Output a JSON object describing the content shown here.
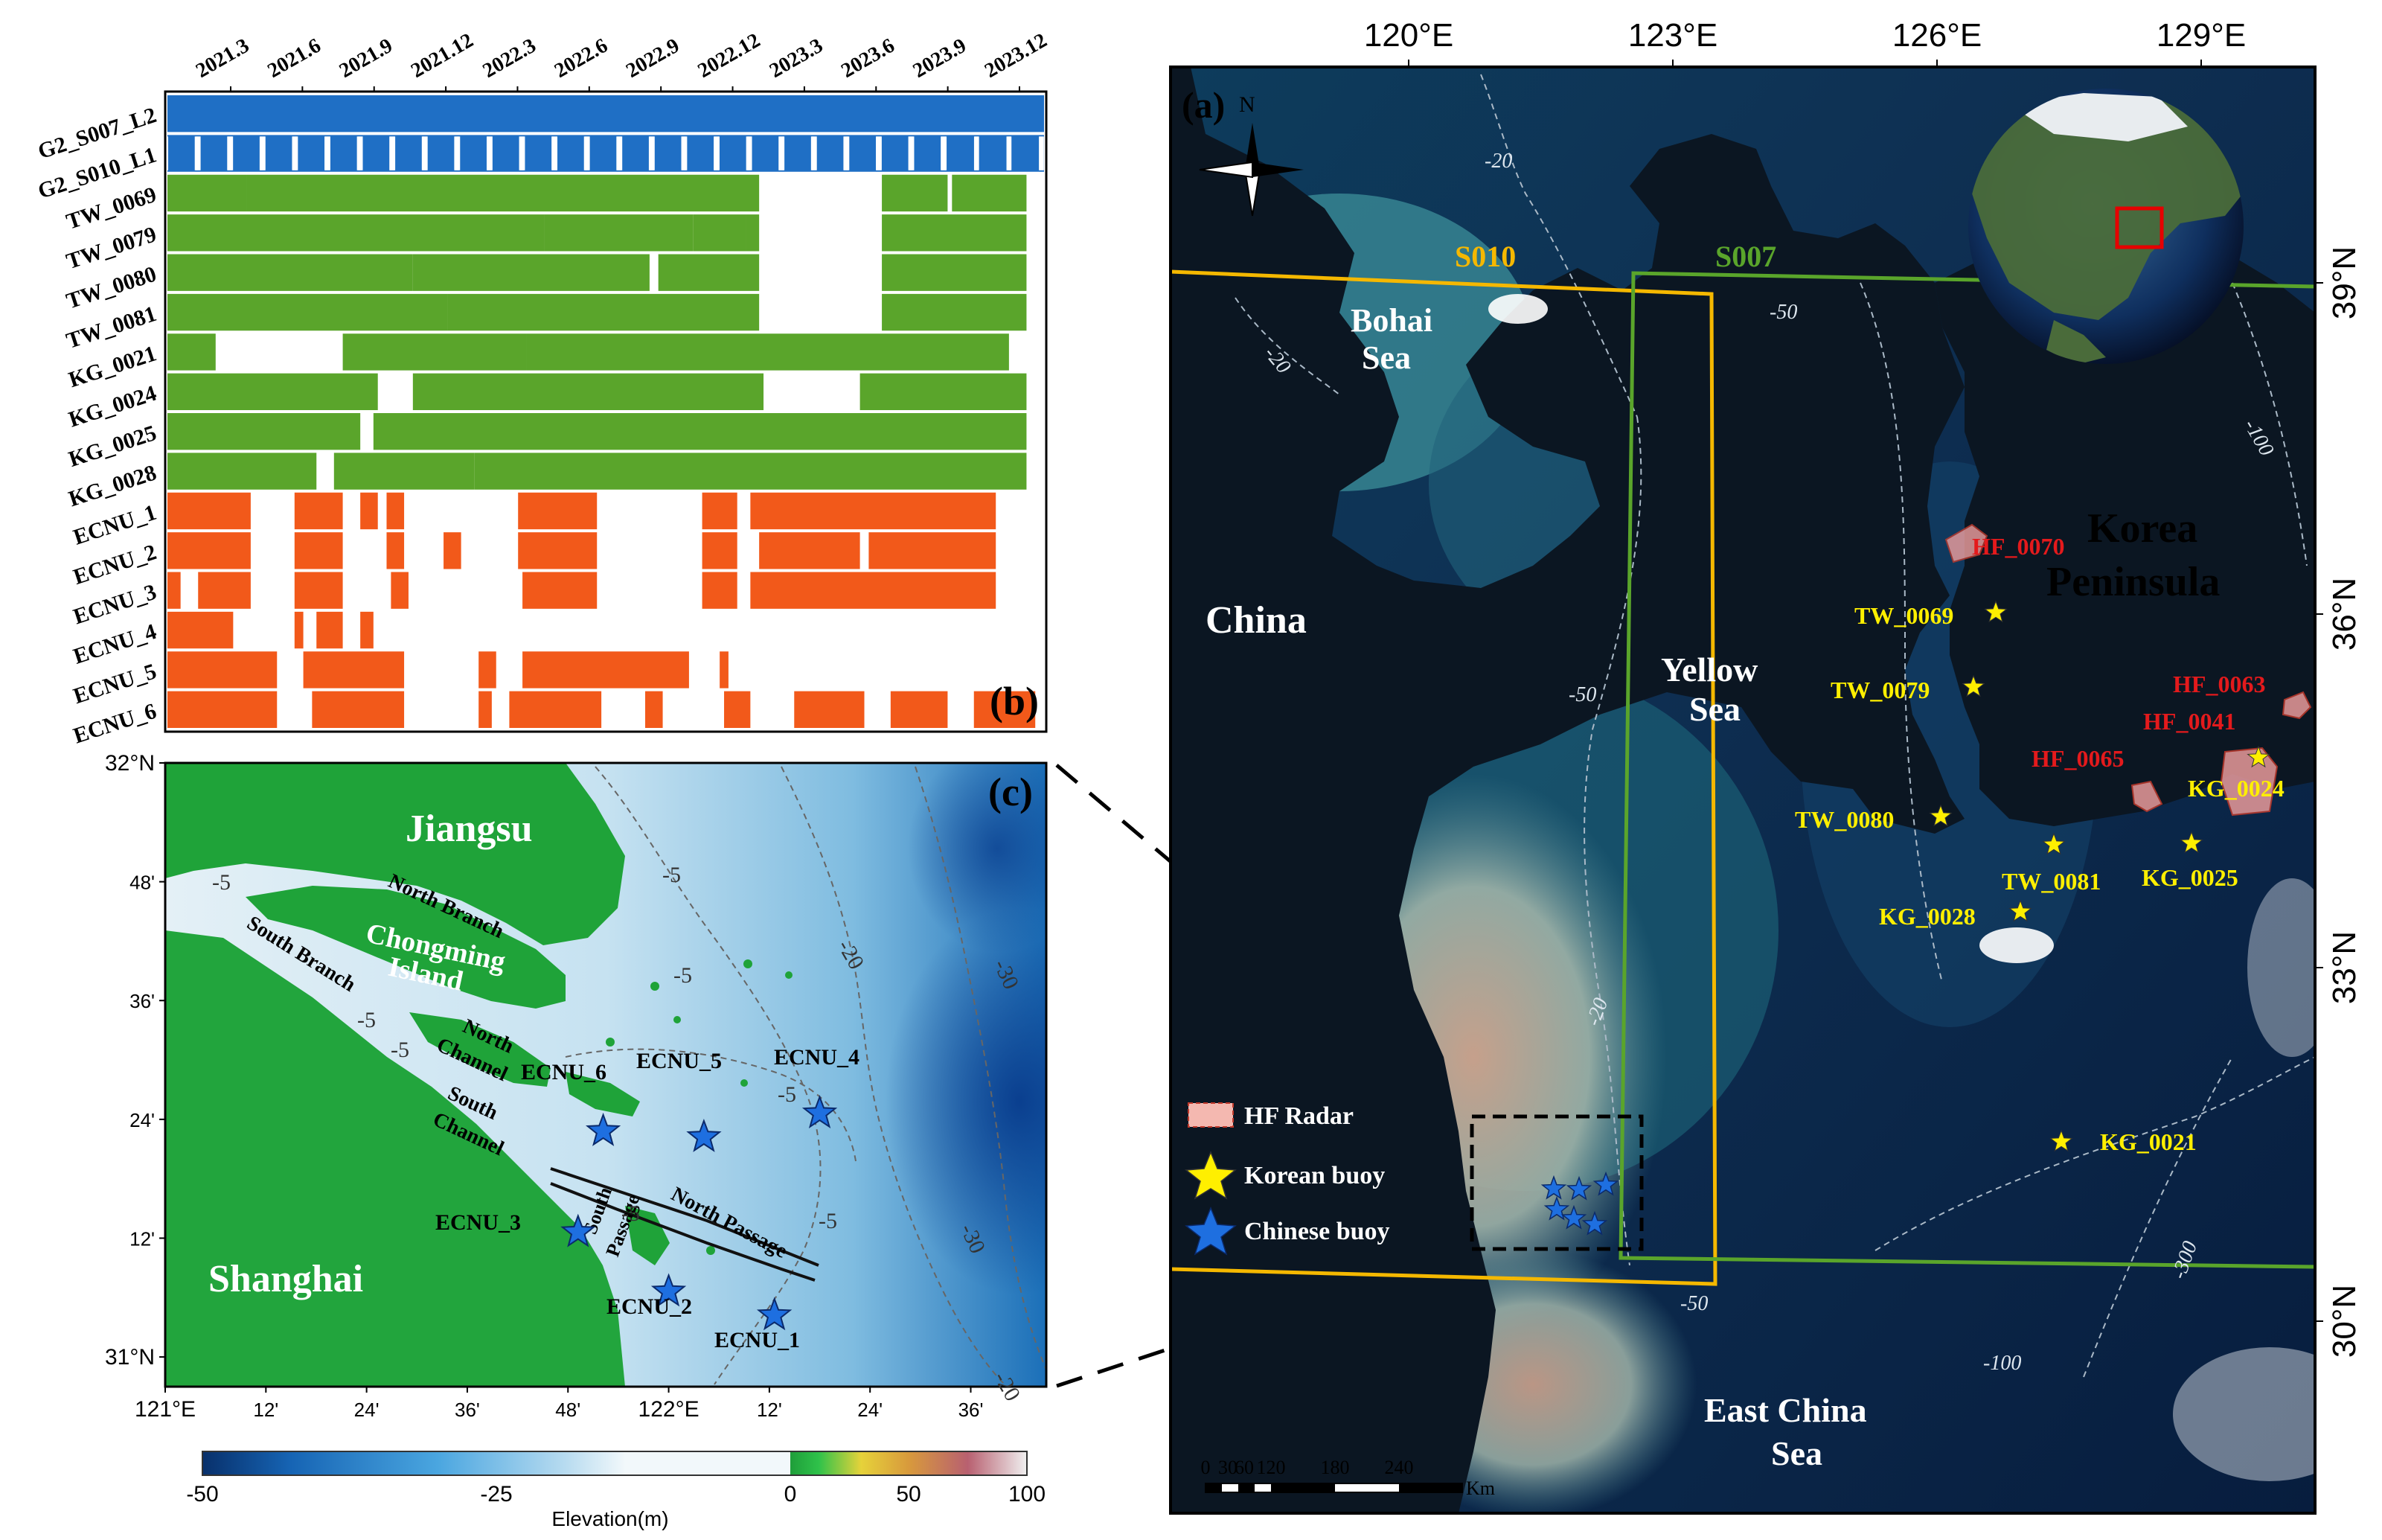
{
  "panel_b": {
    "label": "(b)",
    "time_ticks": [
      "2021.3",
      "2021.6",
      "2021.9",
      "2021.12",
      "2022.3",
      "2022.6",
      "2022.9",
      "2022.12",
      "2023.3",
      "2023.6",
      "2023.9",
      "2023.12"
    ],
    "rows": [
      {
        "name": "G2_S007_L2",
        "color": "#1f6fc5",
        "segments": [
          [
            0,
            1
          ]
        ]
      },
      {
        "name": "G2_S010_L1",
        "color": "#1f6fc5",
        "segments": [
          [
            0,
            1
          ]
        ]
      },
      {
        "name": "TW_0069",
        "color": "#5aa52b",
        "segments": [
          [
            0,
            0.09
          ],
          [
            0.09,
            0.675
          ],
          [
            0.815,
            0.89
          ],
          [
            0.895,
            0.98
          ]
        ]
      },
      {
        "name": "TW_0079",
        "color": "#5aa52b",
        "segments": [
          [
            0,
            0.43
          ],
          [
            0.43,
            0.6
          ],
          [
            0.6,
            0.66
          ],
          [
            0.66,
            0.675
          ],
          [
            0.815,
            0.98
          ]
        ]
      },
      {
        "name": "TW_0080",
        "color": "#5aa52b",
        "segments": [
          [
            0,
            0.28
          ],
          [
            0.28,
            0.55
          ],
          [
            0.56,
            0.675
          ],
          [
            0.815,
            0.98
          ]
        ]
      },
      {
        "name": "TW_0081",
        "color": "#5aa52b",
        "segments": [
          [
            0,
            0.32
          ],
          [
            0.32,
            0.675
          ],
          [
            0.815,
            0.98
          ]
        ]
      },
      {
        "name": "KG_0021",
        "color": "#5aa52b",
        "segments": [
          [
            0,
            0.055
          ],
          [
            0.2,
            0.41
          ],
          [
            0.41,
            0.96
          ]
        ]
      },
      {
        "name": "KG_0024",
        "color": "#5aa52b",
        "segments": [
          [
            0,
            0.24
          ],
          [
            0.28,
            0.68
          ],
          [
            0.79,
            0.98
          ]
        ]
      },
      {
        "name": "KG_0025",
        "color": "#5aa52b",
        "segments": [
          [
            0,
            0.22
          ],
          [
            0.235,
            0.98
          ]
        ]
      },
      {
        "name": "KG_0028",
        "color": "#5aa52b",
        "segments": [
          [
            0,
            0.17
          ],
          [
            0.19,
            0.35
          ],
          [
            0.35,
            0.98
          ]
        ]
      },
      {
        "name": "ECNU_1",
        "color": "#f2591a",
        "segments": [
          [
            0,
            0.095
          ],
          [
            0.145,
            0.2
          ],
          [
            0.22,
            0.24
          ],
          [
            0.25,
            0.27
          ],
          [
            0.4,
            0.49
          ],
          [
            0.61,
            0.65
          ],
          [
            0.665,
            0.945
          ]
        ]
      },
      {
        "name": "ECNU_2",
        "color": "#f2591a",
        "segments": [
          [
            0,
            0.095
          ],
          [
            0.145,
            0.2
          ],
          [
            0.25,
            0.27
          ],
          [
            0.315,
            0.335
          ],
          [
            0.4,
            0.49
          ],
          [
            0.61,
            0.65
          ],
          [
            0.675,
            0.79
          ],
          [
            0.8,
            0.945
          ]
        ]
      },
      {
        "name": "ECNU_3",
        "color": "#f2591a",
        "segments": [
          [
            0,
            0.015
          ],
          [
            0.035,
            0.095
          ],
          [
            0.145,
            0.2
          ],
          [
            0.255,
            0.275
          ],
          [
            0.405,
            0.49
          ],
          [
            0.61,
            0.65
          ],
          [
            0.665,
            0.945
          ]
        ]
      },
      {
        "name": "ECNU_4",
        "color": "#f2591a",
        "segments": [
          [
            0,
            0.075
          ],
          [
            0.145,
            0.155
          ],
          [
            0.17,
            0.2
          ],
          [
            0.22,
            0.235
          ]
        ]
      },
      {
        "name": "ECNU_5",
        "color": "#f2591a",
        "segments": [
          [
            0,
            0.125
          ],
          [
            0.155,
            0.27
          ],
          [
            0.355,
            0.375
          ],
          [
            0.405,
            0.595
          ],
          [
            0.63,
            0.64
          ]
        ]
      },
      {
        "name": "ECNU_6",
        "color": "#f2591a",
        "segments": [
          [
            0,
            0.125
          ],
          [
            0.165,
            0.27
          ],
          [
            0.355,
            0.37
          ],
          [
            0.39,
            0.495
          ],
          [
            0.545,
            0.565
          ],
          [
            0.635,
            0.665
          ],
          [
            0.715,
            0.795
          ],
          [
            0.825,
            0.89
          ],
          [
            0.92,
            0.99
          ]
        ]
      }
    ]
  },
  "panel_c": {
    "label": "(c)",
    "lat_labels": [
      "32°N",
      "48'",
      "36'",
      "24'",
      "12'",
      "31°N"
    ],
    "lon_labels": [
      "121°E",
      "12'",
      "24'",
      "36'",
      "48'",
      "122°E",
      "12'",
      "24'",
      "36'"
    ],
    "region_labels": {
      "jiangsu": "Jiangsu",
      "chongming": "Chongming",
      "island": "Island",
      "shanghai": "Shanghai"
    },
    "channel_labels": {
      "north_branch": "North Branch",
      "south_branch": "South Branch",
      "north_channel": "North",
      "north_channel2": "Channel",
      "south_channel": "South",
      "south_channel2": "Channel",
      "north_passage": "North Passage",
      "south_passage": "South",
      "south_passage2": "Passage"
    },
    "depth_labels": {
      "d5a": "-5",
      "d5b": "-5",
      "d5c": "-5",
      "d5d": "-5",
      "d5e": "-5",
      "d5f": "-5",
      "d5g": "-5",
      "d5h": "-5",
      "d20a": "-20",
      "d20b": "-20",
      "d30a": "-30",
      "d30b": "-30"
    },
    "buoys": [
      {
        "name": "ECNU_1",
        "lat": 31.07,
        "lon": 122.21
      },
      {
        "name": "ECNU_2",
        "lat": 31.11,
        "lon": 122.0
      },
      {
        "name": "ECNU_3",
        "lat": 31.21,
        "lon": 121.82
      },
      {
        "name": "ECNU_4",
        "lat": 31.41,
        "lon": 122.3
      },
      {
        "name": "ECNU_5",
        "lat": 31.37,
        "lon": 122.07
      },
      {
        "name": "ECNU_6",
        "lat": 31.38,
        "lon": 121.87
      }
    ],
    "colorbar": {
      "label": "Elevation(m)",
      "ticks": [
        "-50",
        "-25",
        "0",
        "50",
        "100"
      ],
      "min": -50,
      "max": 100
    }
  },
  "panel_a": {
    "label": "(a)",
    "north_label": "N",
    "lon_labels": [
      "120°E",
      "123°E",
      "126°E",
      "129°E"
    ],
    "lat_labels": [
      "39°N",
      "36°N",
      "33°N",
      "30°N"
    ],
    "regions": {
      "china": "China",
      "bohai1": "Bohai",
      "bohai2": "Sea",
      "yellow1": "Yellow",
      "yellow2": "Sea",
      "korea1": "Korea",
      "korea2": "Peninsula",
      "ecs1": "East China",
      "ecs2": "Sea"
    },
    "swaths": {
      "s010": "S010",
      "s007": "S007"
    },
    "depth_labels": {
      "a1": "-20",
      "a2": "-20",
      "a3": "-50",
      "a4": "-50",
      "a5": "-20",
      "a6": "-50",
      "a7": "-100",
      "a8": "-100",
      "a9": "-300"
    },
    "hf_radars": [
      {
        "name": "HF_0070",
        "lat": 36.47,
        "lon": 126.2
      },
      {
        "name": "HF_0063",
        "lat": 35.3,
        "lon": 129.4
      },
      {
        "name": "HF_0041",
        "lat": 34.9,
        "lon": 129.1
      },
      {
        "name": "HF_0065",
        "lat": 34.7,
        "lon": 128.5
      }
    ],
    "korean_buoys": [
      {
        "name": "TW_0069",
        "lat": 36.1,
        "lon": 126.5
      },
      {
        "name": "TW_0079",
        "lat": 35.6,
        "lon": 126.2
      },
      {
        "name": "TW_0080",
        "lat": 34.6,
        "lon": 126.0
      },
      {
        "name": "TW_0081",
        "lat": 34.4,
        "lon": 127.3
      },
      {
        "name": "KG_0024",
        "lat": 34.9,
        "lon": 129.1
      },
      {
        "name": "KG_0025",
        "lat": 34.4,
        "lon": 128.9
      },
      {
        "name": "KG_0028",
        "lat": 33.8,
        "lon": 127.0
      },
      {
        "name": "KG_0021",
        "lat": 31.8,
        "lon": 127.1
      }
    ],
    "legend": [
      {
        "key": "hf",
        "label": "HF Radar"
      },
      {
        "key": "kor",
        "label": "Korean buoy"
      },
      {
        "key": "chn",
        "label": "Chinese buoy"
      }
    ],
    "scale_bar": {
      "ticks": [
        "0",
        "30",
        "60",
        "120",
        "180",
        "240"
      ],
      "unit": "Km"
    }
  },
  "colors": {
    "modis": "#1f6fc5",
    "wave_buoy": "#5aa52b",
    "ecnu": "#f2591a",
    "s010": "#f5b800",
    "s007": "#5aa52b",
    "buoy_kor": "#ffef00",
    "buoy_chn": "#1e6fe0",
    "hf": "#d31f1f"
  }
}
